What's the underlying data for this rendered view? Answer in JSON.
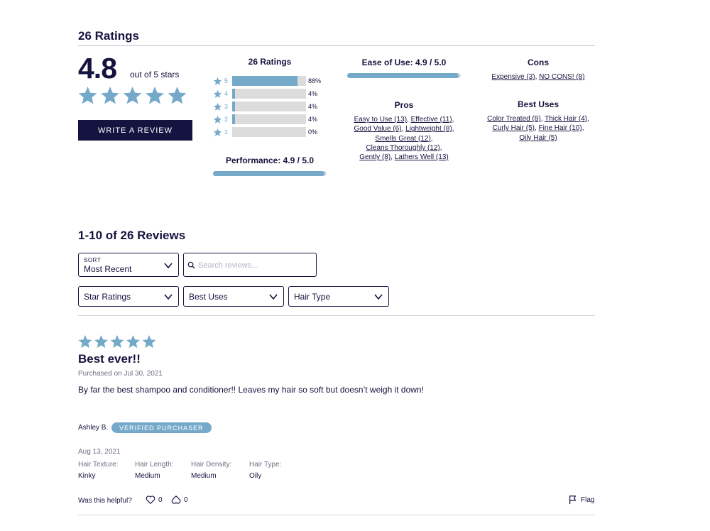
{
  "header": {
    "title": "26 Ratings"
  },
  "overall": {
    "average": "4.8",
    "out_of_label": "out of 5 stars",
    "star_count": 5,
    "write_review_label": "WRITE A REVIEW"
  },
  "histogram": {
    "title": "26 Ratings",
    "rows": [
      {
        "star": "5",
        "percent_label": "88%",
        "fraction": 0.88
      },
      {
        "star": "4",
        "percent_label": "4%",
        "fraction": 0.04
      },
      {
        "star": "3",
        "percent_label": "4%",
        "fraction": 0.04
      },
      {
        "star": "2",
        "percent_label": "4%",
        "fraction": 0.04
      },
      {
        "star": "1",
        "percent_label": "0%",
        "fraction": 0.0
      }
    ]
  },
  "performance": {
    "label": "Performance: 4.9 / 5.0",
    "fraction": 0.98
  },
  "ease_of_use": {
    "label": "Ease of Use: 4.9 / 5.0",
    "fraction": 0.98
  },
  "pros": {
    "title": "Pros",
    "tags": [
      "Easy to Use (13)",
      "Effective (11)",
      "Good Value (6)",
      "Lightweight (8)",
      "Smells Great (12)",
      "Cleans Thoroughly (12)",
      "Gently (8)",
      "Lathers Well (13)"
    ]
  },
  "cons": {
    "title": "Cons",
    "tags": [
      "Expensive (3)",
      "NO CONS! (8)"
    ]
  },
  "best_uses": {
    "title": "Best Uses",
    "tags": [
      "Color Treated (8)",
      "Thick Hair (4)",
      "Curly Hair (5)",
      "Fine Hair (10)",
      "Oily Hair (5)"
    ]
  },
  "reviews_header": {
    "count_label": "1-10 of 26 Reviews",
    "sort_label": "SORT",
    "sort_value": "Most Recent",
    "search_placeholder": "Search reviews...",
    "filters": [
      "Star Ratings",
      "Best Uses",
      "Hair Type"
    ]
  },
  "review": {
    "rating": 5,
    "title": "Best ever!!",
    "purchased": "Purchased on Jul 30, 2021",
    "body": "By far the best shampoo and conditioner!! Leaves my hair so soft but doesn’t weigh it down!",
    "author": "Ashley B.",
    "badge": "VERIFIED PURCHASER",
    "date": "Aug 13, 2021",
    "attributes": [
      {
        "key": "Hair Texture:",
        "value": "Kinky"
      },
      {
        "key": "Hair Length:",
        "value": "Medium"
      },
      {
        "key": "Hair Density:",
        "value": "Medium"
      },
      {
        "key": "Hair Type:",
        "value": "Oily"
      }
    ],
    "helpful_label": "Was this helpful?",
    "upvotes": "0",
    "downvotes": "0",
    "flag_label": "Flag"
  },
  "colors": {
    "navy": "#15133f",
    "accent": "#75a9ca"
  },
  "icons": {
    "star": "star-icon",
    "chevron": "chevron-down-icon",
    "search": "search-icon",
    "heart": "heart-icon",
    "flag": "flag-icon"
  }
}
